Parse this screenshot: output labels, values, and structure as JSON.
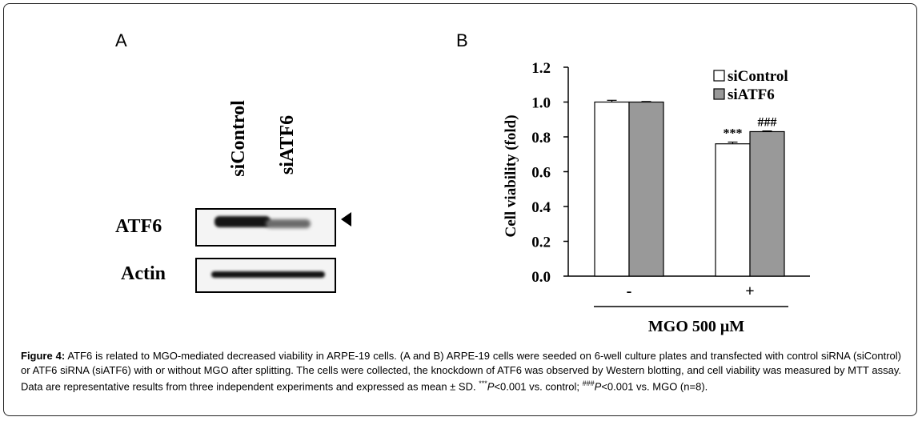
{
  "panel_a": {
    "label": "A",
    "lanes": [
      "siControl",
      "siATF6"
    ],
    "rows": [
      "ATF6",
      "Actin"
    ]
  },
  "panel_b": {
    "label": "B"
  },
  "chart_data": {
    "type": "bar",
    "categories": [
      "-",
      "+"
    ],
    "series": [
      {
        "name": "siControl",
        "values": [
          1.0,
          0.76
        ],
        "errors": [
          0.01,
          0.01
        ],
        "color": "#ffffff"
      },
      {
        "name": "siATF6",
        "values": [
          1.0,
          0.83
        ],
        "errors": [
          0.003,
          0.004
        ],
        "color": "#999999"
      }
    ],
    "annotations": [
      {
        "text": "***",
        "category": "+",
        "series": "siControl"
      },
      {
        "text": "###",
        "category": "+",
        "series": "siATF6"
      }
    ],
    "ylabel": "Cell viability  (fold)",
    "xlabel": "MGO 500 μM",
    "ylim": [
      0,
      1.2
    ],
    "yticks": [
      "0.0",
      "0.2",
      "0.4",
      "0.6",
      "0.8",
      "1.0",
      "1.2"
    ],
    "legend": "top-right",
    "grid": false
  },
  "caption": {
    "fig_label": "Figure 4:",
    "part1": " ATF6 is related to MGO-mediated decreased viability in ARPE-19 cells. (A and B) ARPE-19 cells were seeded on 6-well culture plates and transfected with control siRNA (siControl) or ATF6 siRNA (siATF6) with or without MGO after splitting. The cells were collected, the knockdown of ATF6 was observed by Western blotting, and cell viability was measured by MTT assay. Data are representative results from three independent experiments and expressed as mean ± SD. ",
    "sup1": "***",
    "p1": "P",
    "part2": "<0.001 vs. control; ",
    "sup2": "###",
    "p2": "P",
    "part3": "<0.001 vs. MGO (n=8)."
  }
}
